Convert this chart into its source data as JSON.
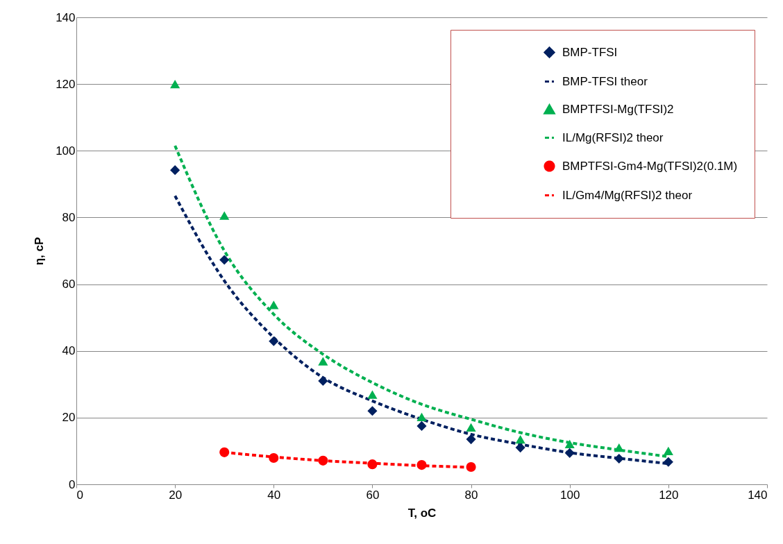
{
  "chart_data": {
    "type": "scatter",
    "xlabel": "T, oC",
    "ylabel": "η, cP",
    "xlim": [
      0,
      140
    ],
    "xticks": [
      0,
      20,
      40,
      60,
      80,
      100,
      120,
      140
    ],
    "ylim": [
      0,
      140
    ],
    "yticks": [
      0,
      20,
      40,
      60,
      80,
      100,
      120,
      140
    ],
    "grid": "y",
    "legend": "top right",
    "series": [
      {
        "name": "BMP-TFSI",
        "marker": "diamond",
        "color": "#002060",
        "x": [
          20,
          30,
          40,
          50,
          60,
          70,
          80,
          90,
          100,
          110,
          120
        ],
        "values": [
          94.2,
          67.3,
          42.9,
          31,
          22,
          17.5,
          13.5,
          11,
          9.4,
          7.7,
          6.7
        ]
      },
      {
        "name": "BMP-TFSI theor",
        "type": "line",
        "line_style": "dashed",
        "marker": "none",
        "color": "#002060",
        "x": [
          20,
          30,
          40,
          50,
          60,
          70,
          80,
          90,
          100,
          110,
          120
        ],
        "values": [
          86.5,
          61,
          44,
          32,
          25,
          19.5,
          15,
          12,
          9.5,
          7.8,
          6.2
        ]
      },
      {
        "name": "BMPTFSI-Mg(TFSI)2",
        "marker": "triangle",
        "color": "#00b050",
        "x": [
          20,
          30,
          40,
          50,
          60,
          70,
          80,
          90,
          100,
          110,
          120
        ],
        "values": [
          120,
          80.6,
          53.8,
          36.9,
          26.9,
          20.2,
          17.1,
          13.5,
          12.1,
          11,
          10
        ]
      },
      {
        "name": "IL/Mg(RFSI)2 theor",
        "type": "line",
        "line_style": "dashed",
        "marker": "none",
        "color": "#00b050",
        "x": [
          20,
          30,
          40,
          50,
          60,
          70,
          80,
          90,
          100,
          110,
          120
        ],
        "values": [
          101.5,
          70,
          51,
          39,
          30.5,
          24,
          19.5,
          15.5,
          12.5,
          10.3,
          8.3
        ]
      },
      {
        "name": "BMPTFSI-Gm4-Mg(TFSI)2(0.1M)",
        "marker": "circle",
        "color": "#ff0000",
        "x": [
          30,
          40,
          50,
          60,
          70,
          80
        ],
        "values": [
          9.6,
          7.9,
          7.1,
          6,
          5.8,
          5.2
        ]
      },
      {
        "name": "IL/Gm4/Mg(RFSI)2 theor",
        "type": "line",
        "line_style": "dashed",
        "marker": "none",
        "color": "#ff0000",
        "x": [
          30,
          40,
          50,
          60,
          70,
          80
        ],
        "values": [
          9.6,
          8.2,
          7.1,
          6.3,
          5.6,
          5.1
        ]
      }
    ]
  }
}
